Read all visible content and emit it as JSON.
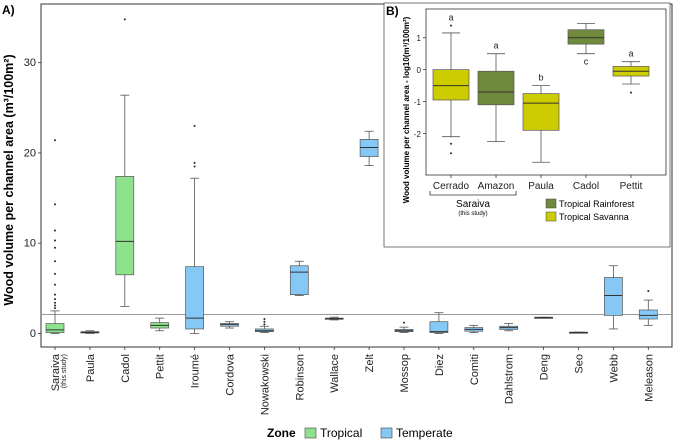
{
  "chart_data": [
    {
      "type": "box",
      "panel_label": "A)",
      "ylabel": "Wood volume per channel area (m³/100m²)",
      "yticks": [
        0,
        10,
        20,
        30
      ],
      "ylim": [
        -1.5,
        36.5
      ],
      "reference_line_y": 2.1,
      "colors": {
        "Tropical": "#8ee28e",
        "Temperate": "#86c8f5"
      },
      "legend": {
        "title": "Zone",
        "items": [
          "Tropical",
          "Temperate"
        ]
      },
      "sites": [
        {
          "name": "Saraiva",
          "sub": "(this study)",
          "zone": "Tropical",
          "min": 0,
          "q1": 0.1,
          "median": 0.4,
          "q3": 1.1,
          "max": 2.5,
          "outliers": [
            2.8,
            3.1,
            3.4,
            3.8,
            4.3,
            5.4,
            6.6,
            8.0,
            9.5,
            10.3,
            11.4,
            14.3,
            21.4
          ]
        },
        {
          "name": "Paula",
          "sub": "",
          "zone": "Tropical",
          "min": 0,
          "q1": 0.05,
          "median": 0.1,
          "q3": 0.2,
          "max": 0.3,
          "outliers": []
        },
        {
          "name": "Cadol",
          "sub": "",
          "zone": "Tropical",
          "min": 3.0,
          "q1": 6.5,
          "median": 10.2,
          "q3": 17.4,
          "max": 26.4,
          "outliers": [
            34.8
          ]
        },
        {
          "name": "Pettit",
          "sub": "",
          "zone": "Tropical",
          "min": 0.3,
          "q1": 0.6,
          "median": 0.9,
          "q3": 1.2,
          "max": 1.7,
          "outliers": []
        },
        {
          "name": "Iroumé",
          "sub": "",
          "zone": "Temperate",
          "min": 0,
          "q1": 0.5,
          "median": 1.7,
          "q3": 7.4,
          "max": 17.2,
          "outliers": [
            18.5,
            18.9,
            23.0
          ]
        },
        {
          "name": "Cordova",
          "sub": "",
          "zone": "Temperate",
          "min": 0.6,
          "q1": 0.8,
          "median": 1.0,
          "q3": 1.1,
          "max": 1.3,
          "outliers": []
        },
        {
          "name": "Nowakowski",
          "sub": "",
          "zone": "Temperate",
          "min": 0.1,
          "q1": 0.2,
          "median": 0.3,
          "q3": 0.5,
          "max": 0.8,
          "outliers": [
            1.0,
            1.3,
            1.6
          ]
        },
        {
          "name": "Robinson",
          "sub": "",
          "zone": "Temperate",
          "min": 4.2,
          "q1": 4.3,
          "median": 6.8,
          "q3": 7.5,
          "max": 8.0,
          "outliers": []
        },
        {
          "name": "Wallace",
          "sub": "",
          "zone": "Temperate",
          "min": 1.5,
          "q1": 1.6,
          "median": 1.65,
          "q3": 1.7,
          "max": 1.8,
          "outliers": []
        },
        {
          "name": "Zelt",
          "sub": "",
          "zone": "Temperate",
          "min": 18.6,
          "q1": 19.6,
          "median": 20.6,
          "q3": 21.5,
          "max": 22.4,
          "outliers": []
        },
        {
          "name": "Mossop",
          "sub": "",
          "zone": "Temperate",
          "min": 0.1,
          "q1": 0.2,
          "median": 0.3,
          "q3": 0.45,
          "max": 0.7,
          "outliers": [
            1.2
          ]
        },
        {
          "name": "Diez",
          "sub": "",
          "zone": "Temperate",
          "min": 0,
          "q1": 0.1,
          "median": 0.2,
          "q3": 1.3,
          "max": 2.3,
          "outliers": []
        },
        {
          "name": "Comiti",
          "sub": "",
          "zone": "Temperate",
          "min": 0.1,
          "q1": 0.25,
          "median": 0.45,
          "q3": 0.65,
          "max": 0.9,
          "outliers": []
        },
        {
          "name": "Dahlstrom",
          "sub": "",
          "zone": "Temperate",
          "min": 0.3,
          "q1": 0.45,
          "median": 0.65,
          "q3": 0.8,
          "max": 1.1,
          "outliers": []
        },
        {
          "name": "Deng",
          "sub": "",
          "zone": "Temperate",
          "min": 1.7,
          "q1": 1.7,
          "median": 1.75,
          "q3": 1.8,
          "max": 1.8,
          "outliers": []
        },
        {
          "name": "Seo",
          "sub": "",
          "zone": "Temperate",
          "min": 0.05,
          "q1": 0.05,
          "median": 0.1,
          "q3": 0.15,
          "max": 0.15,
          "outliers": []
        },
        {
          "name": "Webb",
          "sub": "",
          "zone": "Temperate",
          "min": 0.5,
          "q1": 2.0,
          "median": 4.2,
          "q3": 6.2,
          "max": 7.5,
          "outliers": []
        },
        {
          "name": "Meleason",
          "sub": "",
          "zone": "Temperate",
          "min": 0.9,
          "q1": 1.6,
          "median": 2.0,
          "q3": 2.6,
          "max": 3.7,
          "outliers": [
            4.7
          ]
        }
      ]
    },
    {
      "type": "box",
      "panel_label": "B)",
      "ylabel": "Wood volume per channel area - log10(m³/100m²)",
      "yticks": [
        1,
        0,
        -1,
        -2
      ],
      "ylim": [
        -3.3,
        1.9
      ],
      "colors": {
        "Tropical Rainforest": "#6f8a3c",
        "Tropical Savanna": "#cccc00"
      },
      "legend": {
        "items": [
          "Tropical Rainforest",
          "Tropical Savanna"
        ]
      },
      "group_bracket": {
        "label": "Saraiva",
        "sub": "(this study)"
      },
      "sites": [
        {
          "name": "Cerrado",
          "zone": "Tropical Savanna",
          "letter": "a",
          "min": -2.1,
          "q1": -0.95,
          "median": -0.5,
          "q3": 0.0,
          "max": 1.15,
          "outliers": [
            1.38,
            -2.32,
            -2.62
          ]
        },
        {
          "name": "Amazon",
          "zone": "Tropical Rainforest",
          "letter": "a",
          "min": -2.25,
          "q1": -1.1,
          "median": -0.7,
          "q3": -0.05,
          "max": 0.5,
          "outliers": []
        },
        {
          "name": "Paula",
          "zone": "Tropical Savanna",
          "letter": "b",
          "min": -2.9,
          "q1": -1.9,
          "median": -1.05,
          "q3": -0.75,
          "max": -0.5,
          "outliers": []
        },
        {
          "name": "Cadol",
          "zone": "Tropical Rainforest",
          "letter": "c",
          "min": 0.5,
          "q1": 0.8,
          "median": 1.0,
          "q3": 1.25,
          "max": 1.45,
          "outliers": []
        },
        {
          "name": "Pettit",
          "zone": "Tropical Savanna",
          "letter": "a",
          "min": -0.45,
          "q1": -0.2,
          "median": -0.05,
          "q3": 0.1,
          "max": 0.25,
          "outliers": [
            -0.72
          ]
        }
      ]
    }
  ]
}
